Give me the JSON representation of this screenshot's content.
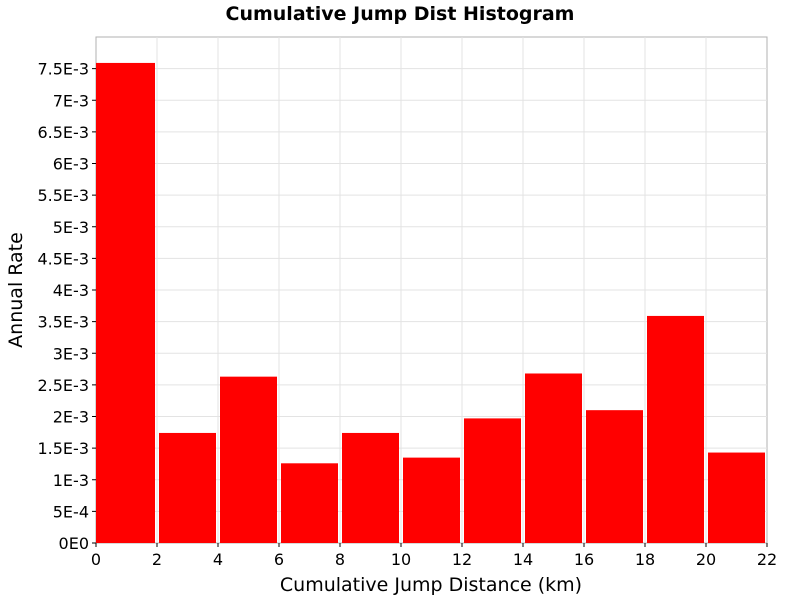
{
  "chart_data": {
    "type": "bar",
    "title": "Cumulative Jump Dist Histogram",
    "xlabel": "Cumulative Jump Distance (km)",
    "ylabel": "Annual Rate",
    "xlim": [
      0,
      22
    ],
    "ylim": [
      0,
      0.008
    ],
    "x_ticks": [
      {
        "value": 0,
        "label": "0"
      },
      {
        "value": 2,
        "label": "2"
      },
      {
        "value": 4,
        "label": "4"
      },
      {
        "value": 6,
        "label": "6"
      },
      {
        "value": 8,
        "label": "8"
      },
      {
        "value": 10,
        "label": "10"
      },
      {
        "value": 12,
        "label": "12"
      },
      {
        "value": 14,
        "label": "14"
      },
      {
        "value": 16,
        "label": "16"
      },
      {
        "value": 18,
        "label": "18"
      },
      {
        "value": 20,
        "label": "20"
      },
      {
        "value": 22,
        "label": "22"
      }
    ],
    "y_ticks": [
      {
        "value": 0,
        "label": "0E0"
      },
      {
        "value": 0.0005,
        "label": "5E-4"
      },
      {
        "value": 0.001,
        "label": "1E-3"
      },
      {
        "value": 0.0015,
        "label": "1.5E-3"
      },
      {
        "value": 0.002,
        "label": "2E-3"
      },
      {
        "value": 0.0025,
        "label": "2.5E-3"
      },
      {
        "value": 0.003,
        "label": "3E-3"
      },
      {
        "value": 0.0035,
        "label": "3.5E-3"
      },
      {
        "value": 0.004,
        "label": "4E-3"
      },
      {
        "value": 0.0045,
        "label": "4.5E-3"
      },
      {
        "value": 0.005,
        "label": "5E-3"
      },
      {
        "value": 0.0055,
        "label": "5.5E-3"
      },
      {
        "value": 0.006,
        "label": "6E-3"
      },
      {
        "value": 0.0065,
        "label": "6.5E-3"
      },
      {
        "value": 0.007,
        "label": "7E-3"
      },
      {
        "value": 0.0075,
        "label": "7.5E-3"
      }
    ],
    "bins": [
      {
        "x0": 0,
        "x1": 2,
        "value": 0.00759
      },
      {
        "x0": 2,
        "x1": 4,
        "value": 0.00174
      },
      {
        "x0": 4,
        "x1": 6,
        "value": 0.00263
      },
      {
        "x0": 6,
        "x1": 8,
        "value": 0.00126
      },
      {
        "x0": 8,
        "x1": 10,
        "value": 0.00174
      },
      {
        "x0": 10,
        "x1": 12,
        "value": 0.00135
      },
      {
        "x0": 12,
        "x1": 14,
        "value": 0.00197
      },
      {
        "x0": 14,
        "x1": 16,
        "value": 0.00268
      },
      {
        "x0": 16,
        "x1": 18,
        "value": 0.0021
      },
      {
        "x0": 18,
        "x1": 20,
        "value": 0.00359
      },
      {
        "x0": 20,
        "x1": 22,
        "value": 0.00143
      }
    ],
    "bar_color": "#ff0000",
    "grid": true,
    "legend": "none"
  }
}
